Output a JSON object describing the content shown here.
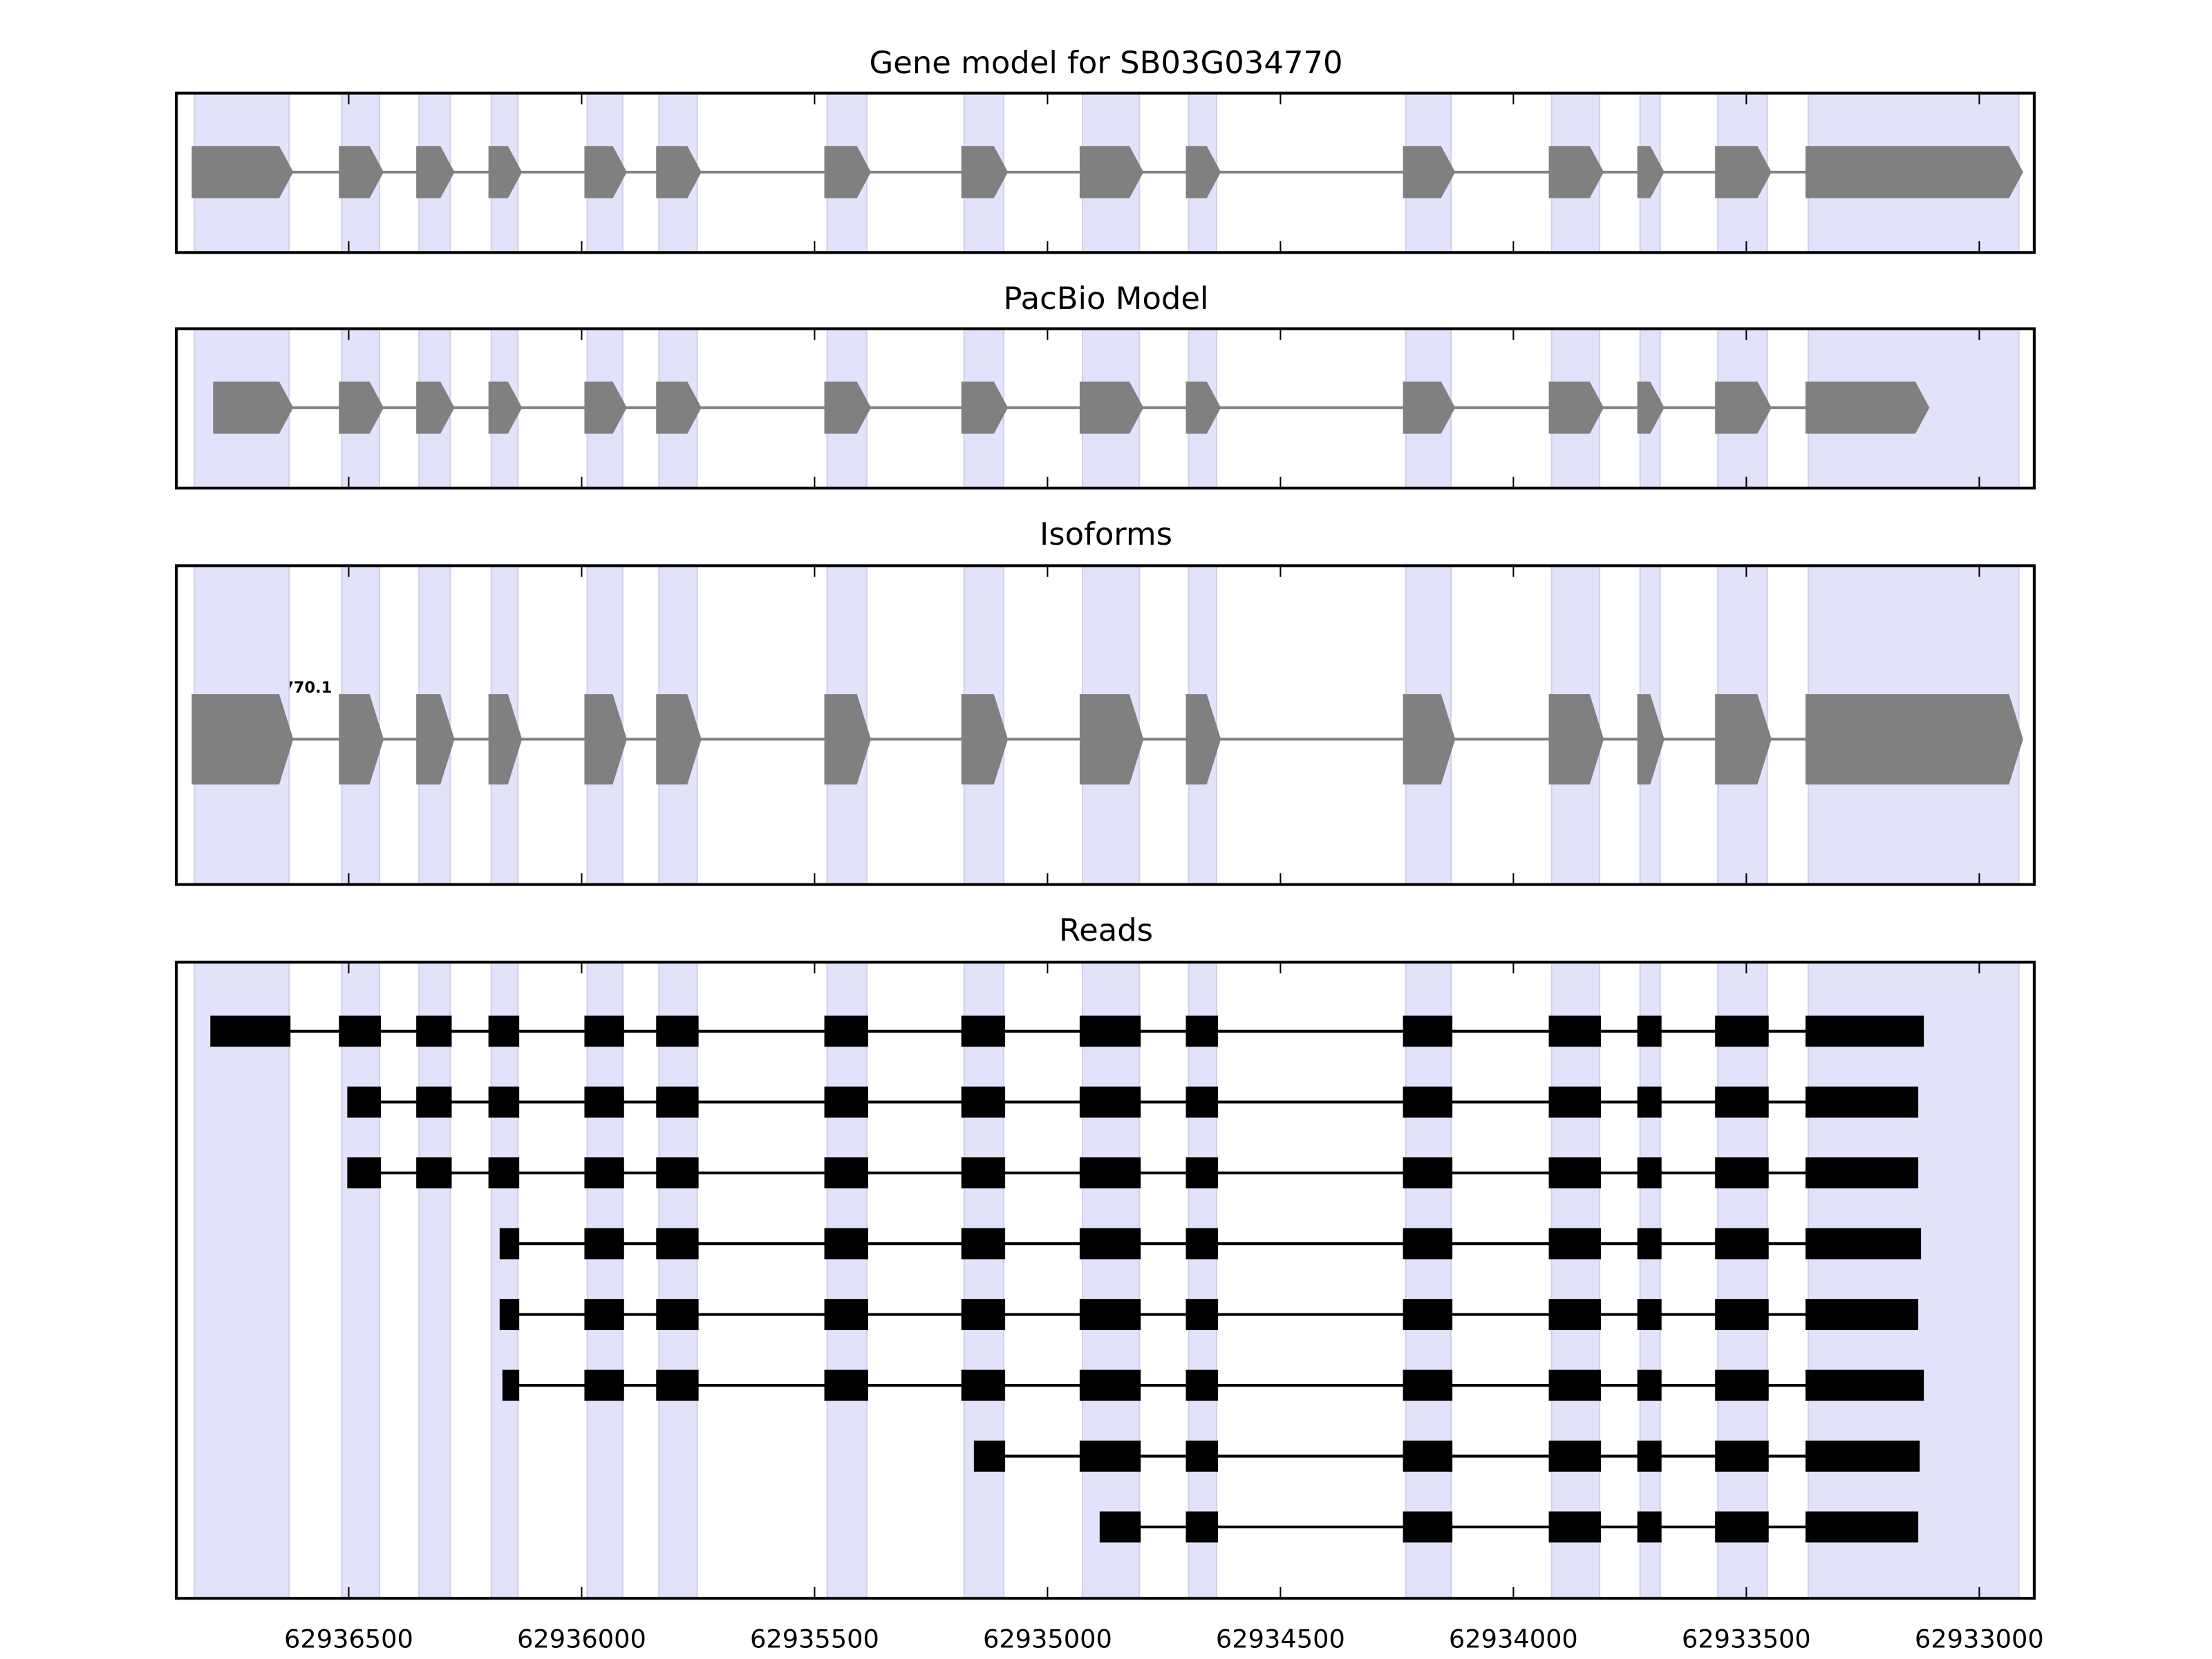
{
  "chart_data": {
    "type": "gene-track",
    "x_domain": [
      62936870,
      62932882
    ],
    "x_reversed": true,
    "x_ticks": [
      62936500,
      62936000,
      62935500,
      62935000,
      62934500,
      62934000,
      62933500,
      62933000
    ],
    "x_tick_labels": [
      "62936500",
      "62936000",
      "62935500",
      "62935000",
      "62934500",
      "62934000",
      "62933500",
      "62933000"
    ],
    "colors": {
      "exon_band": "#e2e2fa",
      "exon_band_edge": "#cfd0ea",
      "model": "#808080",
      "read": "#000000"
    },
    "exons": [
      [
        62936831,
        62936628
      ],
      [
        62936515,
        62936434
      ],
      [
        62936349,
        62936282
      ],
      [
        62936194,
        62936137
      ],
      [
        62935988,
        62935912
      ],
      [
        62935834,
        62935752
      ],
      [
        62935473,
        62935388
      ],
      [
        62935179,
        62935094
      ],
      [
        62934925,
        62934803
      ],
      [
        62934697,
        62934637
      ],
      [
        62934231,
        62934134
      ],
      [
        62933918,
        62933815
      ],
      [
        62933728,
        62933685
      ],
      [
        62933561,
        62933455
      ],
      [
        62933367,
        62932915
      ]
    ],
    "panels": [
      {
        "title": "Gene model for SB03G034770",
        "kind": "model",
        "start": 62936831,
        "end": 62932915
      },
      {
        "title": "PacBio Model",
        "kind": "model",
        "start": 62936785,
        "end": 62933116
      },
      {
        "title": "Isoforms",
        "kind": "isoform",
        "start": 62936831,
        "end": 62932915,
        "label": "SB03G034770.1"
      },
      {
        "title": "Reads",
        "kind": "reads"
      }
    ],
    "reads": [
      {
        "start": 62936791,
        "end": 62933122
      },
      {
        "start": 62936497,
        "end": 62933134
      },
      {
        "start": 62936497,
        "end": 62933134
      },
      {
        "start": 62936170,
        "end": 62933128
      },
      {
        "start": 62936170,
        "end": 62933134
      },
      {
        "start": 62936164,
        "end": 62933122
      },
      {
        "start": 62935152,
        "end": 62933131
      },
      {
        "start": 62934882,
        "end": 62933134
      }
    ]
  }
}
